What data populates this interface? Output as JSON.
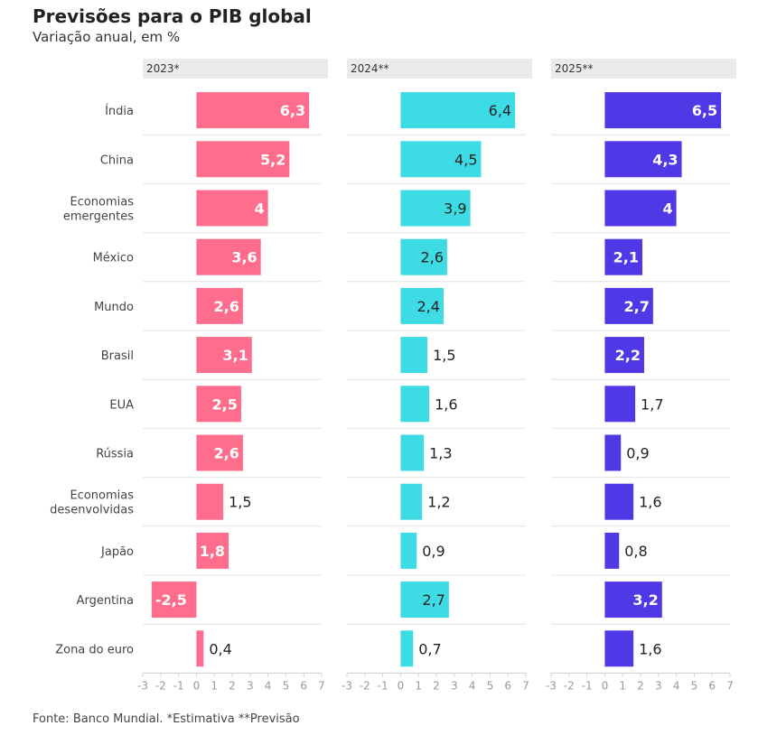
{
  "title": "Previsões para o PIB global",
  "subtitle": "Variação anual, em %",
  "source": "Fonte: Banco Mundial. *Estimativa **Previsão",
  "chart_data": {
    "type": "bar",
    "orientation": "horizontal",
    "categories": [
      "Índia",
      "China",
      "Economias emergentes",
      "México",
      "Mundo",
      "Brasil",
      "EUA",
      "Rússia",
      "Economias desenvolvidas",
      "Japão",
      "Argentina",
      "Zona do euro"
    ],
    "category_lines": [
      [
        "Índia"
      ],
      [
        "China"
      ],
      [
        "Economias",
        "emergentes"
      ],
      [
        "México"
      ],
      [
        "Mundo"
      ],
      [
        "Brasil"
      ],
      [
        "EUA"
      ],
      [
        "Rússia"
      ],
      [
        "Economias",
        "desenvolvidas"
      ],
      [
        "Japão"
      ],
      [
        "Argentina"
      ],
      [
        "Zona do euro"
      ]
    ],
    "series": [
      {
        "name": "2023*",
        "color": "#ff6d8c",
        "values": [
          6.3,
          5.2,
          4,
          3.6,
          2.6,
          3.1,
          2.5,
          2.6,
          1.5,
          1.8,
          -2.5,
          0.4
        ]
      },
      {
        "name": "2024**",
        "color": "#3ddbe3",
        "values": [
          6.4,
          4.5,
          3.9,
          2.6,
          2.4,
          1.5,
          1.6,
          1.3,
          1.2,
          0.9,
          2.7,
          0.7
        ]
      },
      {
        "name": "2025**",
        "color": "#5138e6",
        "values": [
          6.5,
          4.3,
          4,
          2.1,
          2.7,
          2.2,
          1.7,
          0.9,
          1.6,
          0.8,
          3.2,
          1.6
        ]
      }
    ],
    "xlim": [
      -3,
      7
    ],
    "xticks": [
      -3,
      -2,
      -1,
      0,
      1,
      2,
      3,
      4,
      5,
      6,
      7
    ],
    "decimal_separator": ","
  }
}
